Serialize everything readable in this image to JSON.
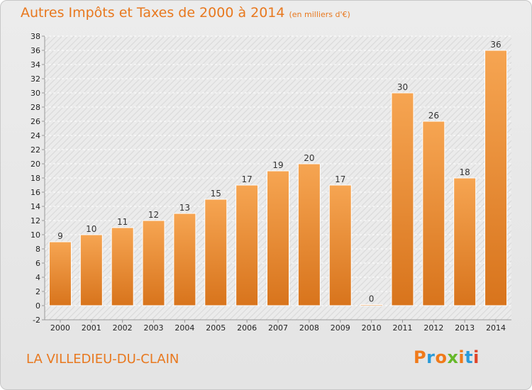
{
  "chart_data": {
    "type": "bar",
    "title": "Autres Impôts et Taxes de 2000 à 2014",
    "subtitle": "(en milliers d'€)",
    "categories": [
      "2000",
      "2001",
      "2002",
      "2003",
      "2004",
      "2005",
      "2006",
      "2007",
      "2008",
      "2009",
      "2010",
      "2011",
      "2012",
      "2013",
      "2014"
    ],
    "values": [
      9,
      10,
      11,
      12,
      13,
      15,
      17,
      19,
      20,
      17,
      0,
      30,
      26,
      18,
      36
    ],
    "xlabel": "",
    "ylabel": "",
    "ylim": [
      -2,
      38
    ],
    "ytick_step": 2,
    "grid": true,
    "bar_color": "#f29a3c"
  },
  "footer": {
    "commune": "LA VILLEDIEU-DU-CLAIN",
    "logo_text": "Proxiti",
    "logo_colors": [
      "#f07a1a",
      "#2a9ad8",
      "#f07a1a",
      "#66b82a",
      "#f07a1a",
      "#2a9ad8",
      "#e0462a"
    ]
  }
}
